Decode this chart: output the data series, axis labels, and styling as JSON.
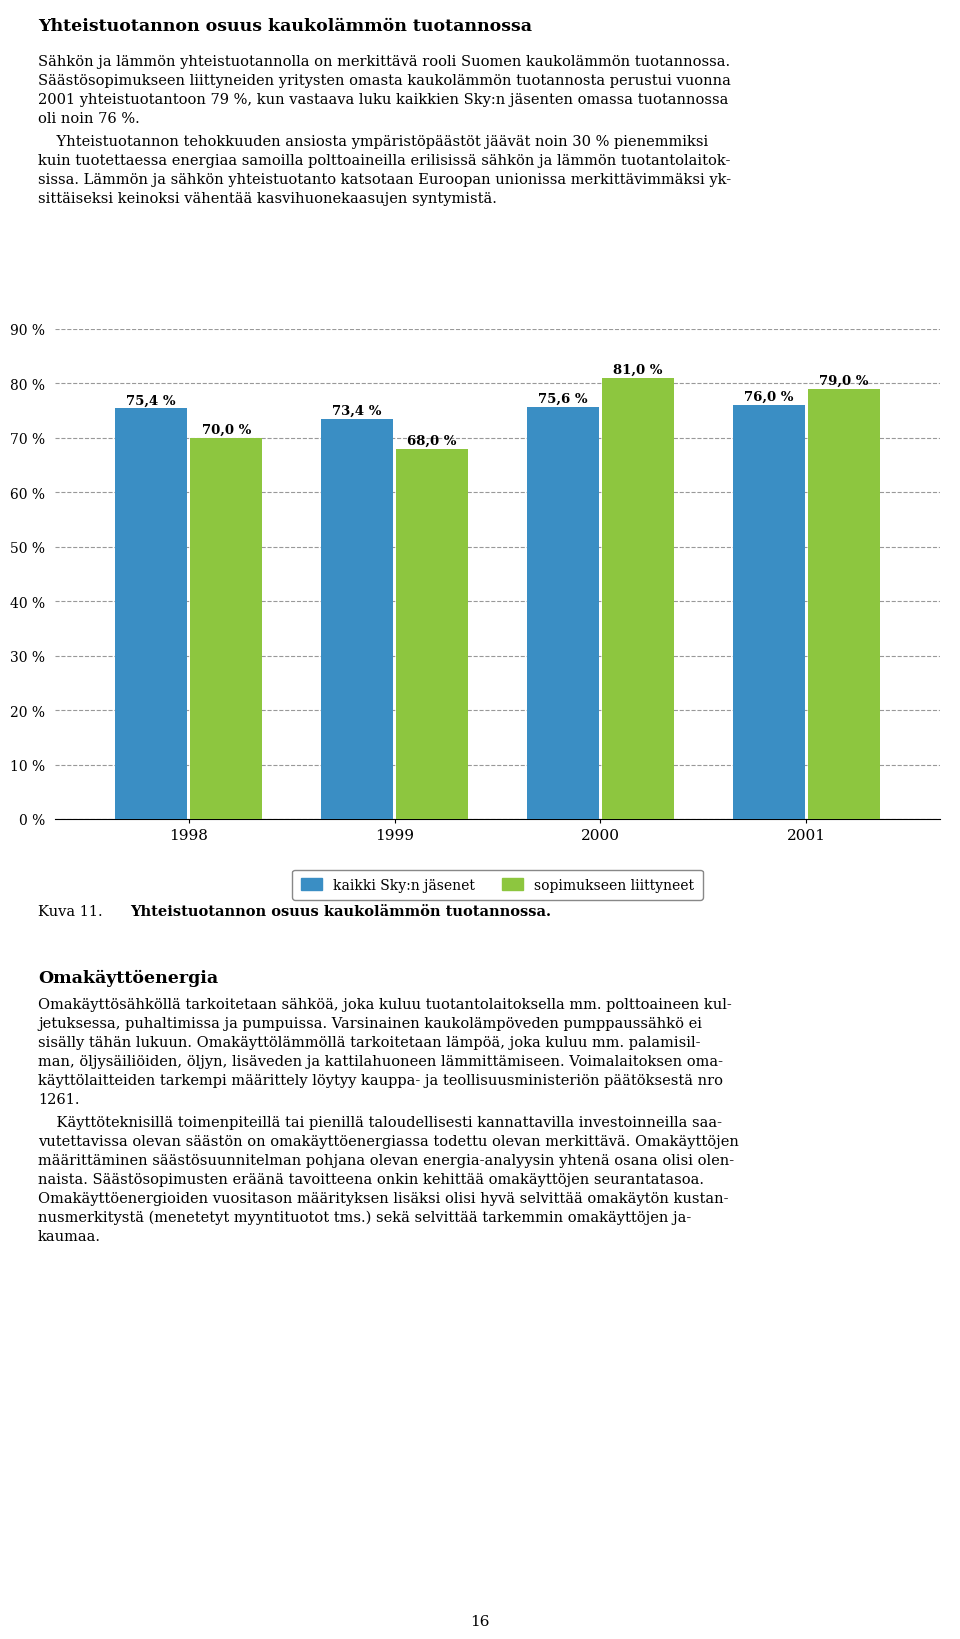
{
  "heading": "Yhteistuotannon osuus kaukolämmön tuotannossa",
  "para1_line1": "Sähkön ja lämmön yhteistuotannolla on merkittävä rooli Suomen kaukolämmön tuotannossa.",
  "para1_line2": "Säästösopimukseen liittyneiden yritysten omasta kaukolämmön tuotannosta perustui vuonna",
  "para1_line3": "2001 yhteistuotantoon 79 %, kun vastaava luku kaikkien Sky:n jäsenten omassa tuotannossa",
  "para1_line4": "oli noin 76 %.",
  "para2_line1": "    Yhteistuotannon tehokkuuden ansiosta ympäristöpäästöt jäävät noin 30 % pienemmiksi",
  "para2_line2": "kuin tuotettaessa energiaa samoilla polttoaineilla erilisissä sähkön ja lämmön tuotantolaitok-",
  "para2_line3": "sissa. Lämmön ja sähkön yhteistuotanto katsotaan Euroopan unionissa merkittävimmäksi yk-",
  "para2_line4": "sittäiseksi keinoksi vähentää kasvihuonekaasujen syntymistä.",
  "years": [
    "1998",
    "1999",
    "2000",
    "2001"
  ],
  "blue_values": [
    75.4,
    73.4,
    75.6,
    76.0
  ],
  "green_values": [
    70.0,
    68.0,
    81.0,
    79.0
  ],
  "blue_color": "#3A8EC4",
  "green_color": "#8DC63F",
  "ylim_min": 0,
  "ylim_max": 90,
  "yticks": [
    0,
    10,
    20,
    30,
    40,
    50,
    60,
    70,
    80,
    90
  ],
  "legend_blue": "kaikki Sky:n jäsenet",
  "legend_green": "sopimukseen liittyneet",
  "caption_label": "Kuva 11.",
  "caption_text": "Yhteistuotannon osuus kaukolämmön tuotannossa.",
  "section_title": "Omakäyttöenergia",
  "oma_para1_l1": "Omakäyttösähköllä tarkoitetaan sähköä, joka kuluu tuotantolaitoksella mm. polttoaineen kul-",
  "oma_para1_l2": "jetuksessa, puhaltimissa ja pumpuissa. Varsinainen kaukolämpöveden pumppaussähkö ei",
  "oma_para1_l3": "sisälly tähän lukuun. Omakäyttölämmöllä tarkoitetaan lämpöä, joka kuluu mm. palamisil-",
  "oma_para1_l4": "man, öljysäiliöiden, öljyn, lisäveden ja kattilahuoneen lämmittämiseen. Voimalaitoksen oma-",
  "oma_para1_l5": "käyttölaitteiden tarkempi määrittely löytyy kauppa- ja teollisuusministeriön päätöksestä nro",
  "oma_para1_l6": "1261.",
  "oma_para2_l1": "    Käyttöteknisillä toimenpiteillä tai pienillä taloudellisesti kannattavilla investoinneilla saa-",
  "oma_para2_l2": "vutettavissa olevan säästön on omakäyttöenergiassa todettu olevan merkittävä. Omakäyttöjen",
  "oma_para2_l3": "määrittäminen säästösuunnitelman pohjana olevan energia-analyysin yhtenä osana olisi olen-",
  "oma_para2_l4": "naista. Säästösopimusten eräänä tavoitteena onkin kehittää omakäyttöjen seurantatasoa.",
  "oma_para2_l5": "Omakäyttöenergioiden vuositason määrityksen lisäksi olisi hyvä selvittää omakäytön kustan-",
  "oma_para2_l6": "nusmerkitystä (menetetyt myyntituotot tms.) sekä selvittää tarkemmin omakäyttöjen ja-",
  "oma_para2_l7": "kaumaa.",
  "page_number": "16",
  "bar_width": 0.35,
  "text_fontsize": 10.5,
  "heading_fontsize": 12.5
}
